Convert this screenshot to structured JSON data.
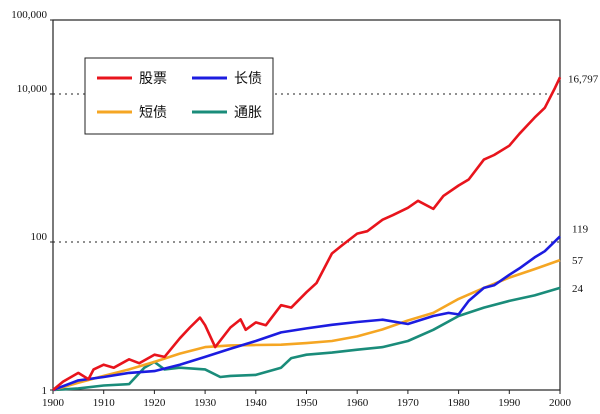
{
  "chart_data": {
    "type": "line",
    "title": "",
    "xlabel": "",
    "ylabel": "",
    "yscale": "log",
    "xlim": [
      1900,
      2000
    ],
    "ylim": [
      1,
      100000
    ],
    "x_ticks": [
      "1900",
      "1910",
      "1920",
      "1930",
      "1940",
      "1950",
      "1960",
      "1970",
      "1980",
      "1990",
      "2000"
    ],
    "y_ticks": [
      {
        "value": 1,
        "label": "1"
      },
      {
        "value": 100,
        "label": "100"
      },
      {
        "value": 10000,
        "label": "10,000"
      },
      {
        "value": 100000,
        "label": "100,000"
      }
    ],
    "reference_lines": [
      100,
      10000
    ],
    "legend_position": "top-left",
    "series": [
      {
        "name": "股票",
        "color": "#e8141c",
        "end_label": "16,797",
        "x": [
          1900,
          1902,
          1905,
          1907,
          1908,
          1910,
          1912,
          1915,
          1917,
          1920,
          1922,
          1925,
          1927,
          1929,
          1930,
          1932,
          1935,
          1937,
          1938,
          1940,
          1942,
          1945,
          1947,
          1950,
          1952,
          1955,
          1957,
          1960,
          1962,
          1965,
          1967,
          1970,
          1972,
          1975,
          1977,
          1980,
          1982,
          1985,
          1987,
          1990,
          1992,
          1995,
          1997,
          1999,
          2000
        ],
        "values": [
          1,
          1.3,
          1.7,
          1.4,
          1.9,
          2.2,
          2.0,
          2.6,
          2.3,
          3.0,
          2.8,
          5.0,
          7.0,
          9.5,
          7.5,
          3.8,
          7.0,
          9.0,
          6.5,
          8.2,
          7.5,
          14,
          13,
          21,
          28,
          70,
          90,
          130,
          140,
          200,
          230,
          290,
          360,
          280,
          420,
          580,
          700,
          1300,
          1500,
          2000,
          2900,
          4800,
          6500,
          12000,
          16797
        ]
      },
      {
        "name": "长债",
        "color": "#1c1ce0",
        "end_label": "119",
        "x": [
          1900,
          1905,
          1910,
          1915,
          1920,
          1925,
          1930,
          1935,
          1940,
          1945,
          1950,
          1955,
          1960,
          1965,
          1970,
          1975,
          1978,
          1980,
          1982,
          1985,
          1987,
          1990,
          1992,
          1995,
          1997,
          2000
        ],
        "values": [
          1,
          1.35,
          1.5,
          1.7,
          1.8,
          2.2,
          2.8,
          3.6,
          4.6,
          6.0,
          6.8,
          7.6,
          8.3,
          8.9,
          7.8,
          10,
          11,
          10.5,
          16,
          24,
          26,
          36,
          44,
          62,
          75,
          119
        ]
      },
      {
        "name": "短债",
        "color": "#f5a623",
        "end_label": "57",
        "x": [
          1900,
          1905,
          1910,
          1915,
          1920,
          1925,
          1930,
          1935,
          1940,
          1945,
          1950,
          1955,
          1960,
          1965,
          1970,
          1975,
          1980,
          1985,
          1990,
          1995,
          2000
        ],
        "values": [
          1,
          1.25,
          1.55,
          1.9,
          2.4,
          3.1,
          3.8,
          4.0,
          4.05,
          4.1,
          4.3,
          4.6,
          5.3,
          6.6,
          8.7,
          11,
          17,
          24,
          33,
          43,
          57
        ]
      },
      {
        "name": "通胀",
        "color": "#1a8c7a",
        "end_label": "24",
        "x": [
          1900,
          1905,
          1910,
          1915,
          1918,
          1920,
          1922,
          1925,
          1930,
          1933,
          1935,
          1940,
          1945,
          1947,
          1950,
          1955,
          1960,
          1965,
          1970,
          1975,
          1980,
          1985,
          1990,
          1995,
          2000
        ],
        "values": [
          1,
          1.05,
          1.15,
          1.2,
          2.0,
          2.4,
          1.9,
          2.0,
          1.9,
          1.5,
          1.55,
          1.6,
          2.0,
          2.7,
          3.0,
          3.2,
          3.5,
          3.8,
          4.6,
          6.5,
          10,
          13,
          16,
          19,
          24
        ]
      }
    ]
  }
}
